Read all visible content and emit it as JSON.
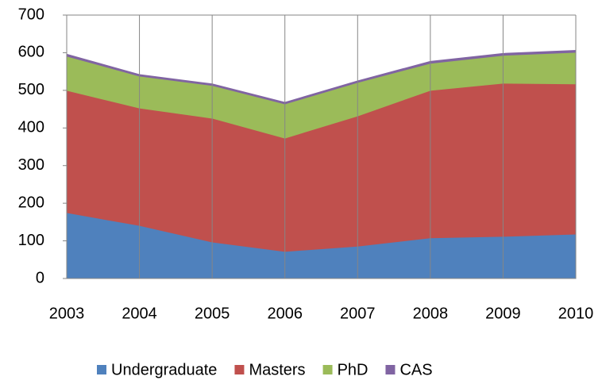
{
  "chart_data": {
    "type": "stacked_area",
    "categories": [
      "2003",
      "2004",
      "2005",
      "2006",
      "2007",
      "2008",
      "2009",
      "2010"
    ],
    "series": [
      {
        "name": "Undergraduate",
        "color": "#4f81bd",
        "values": [
          175,
          141,
          97,
          72,
          86,
          108,
          112,
          118
        ]
      },
      {
        "name": "Masters",
        "color": "#c0504d",
        "values": [
          325,
          312,
          329,
          301,
          346,
          392,
          407,
          399
        ]
      },
      {
        "name": "PhD",
        "color": "#9bbb59",
        "values": [
          91,
          85,
          87,
          91,
          89,
          72,
          74,
          84
        ]
      },
      {
        "name": "CAS",
        "color": "#8064a2",
        "values": [
          5,
          4,
          4,
          4,
          4,
          5,
          5,
          5
        ]
      }
    ],
    "ylim": [
      0,
      700
    ],
    "yticks": [
      0,
      100,
      200,
      300,
      400,
      500,
      600,
      700
    ],
    "grid": "x",
    "legend": "bottom"
  }
}
